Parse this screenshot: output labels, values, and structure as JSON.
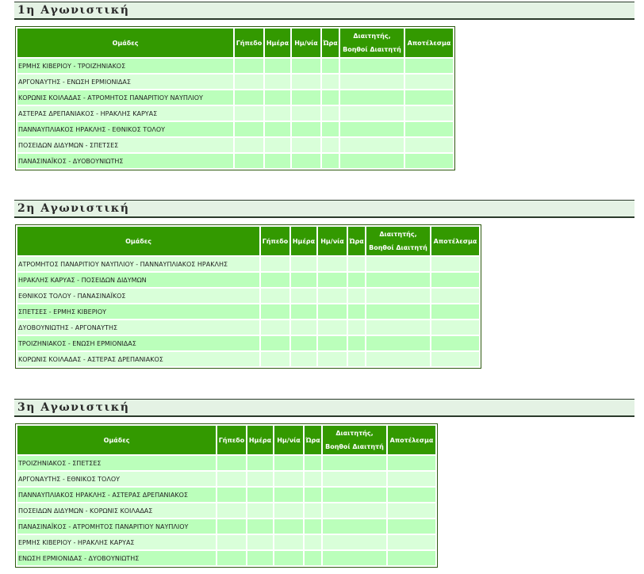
{
  "columns": [
    "Ομάδες",
    "Γήπεδο",
    "Ημέρα",
    "Ημ/νία",
    "Ώρα",
    "Διαιτητής,|Βοηθοί Διαιτητή",
    "Αποτέλεσμα"
  ],
  "colors": {
    "header_bg": "#339900",
    "row_dark": "#bbffbb",
    "row_light": "#d9ffd9",
    "section_bg": "#e4f2e4"
  },
  "rounds": [
    {
      "title": "1η Αγωνιστική",
      "matches": [
        {
          "teams": "ΕΡΜΗΣ ΚΙΒΕΡΙΟΥ - ΤΡΟΙΖΗΝΙΑΚΟΣ",
          "venue": "",
          "day": "",
          "date": "",
          "time": "",
          "referees": "",
          "result": ""
        },
        {
          "teams": "ΑΡΓΟΝΑΥΤΗΣ - ΕΝΩΣΗ ΕΡΜΙΟΝΙΔΑΣ",
          "venue": "",
          "day": "",
          "date": "",
          "time": "",
          "referees": "",
          "result": ""
        },
        {
          "teams": "ΚΟΡΩΝΙΣ ΚΟΙΛΑΔΑΣ - ΑΤΡΟΜΗΤΟΣ ΠΑΝΑΡΙΤΙΟΥ ΝΑΥΠΛΙΟΥ",
          "venue": "",
          "day": "",
          "date": "",
          "time": "",
          "referees": "",
          "result": ""
        },
        {
          "teams": "ΑΣΤΕΡΑΣ ΔΡΕΠΑΝΙΑΚΟΣ - ΗΡΑΚΛΗΣ ΚΑΡΥΑΣ",
          "venue": "",
          "day": "",
          "date": "",
          "time": "",
          "referees": "",
          "result": ""
        },
        {
          "teams": "ΠΑΝΝΑΥΠΛΙΑΚΟΣ ΗΡΑΚΛΗΣ - ΕΘΝΙΚΟΣ ΤΟΛΟΥ",
          "venue": "",
          "day": "",
          "date": "",
          "time": "",
          "referees": "",
          "result": ""
        },
        {
          "teams": "ΠΟΣΕΙΔΩΝ ΔΙΔΥΜΩΝ - ΣΠΕΤΣΕΣ",
          "venue": "",
          "day": "",
          "date": "",
          "time": "",
          "referees": "",
          "result": ""
        },
        {
          "teams": "ΠΑΝΑΣΙΝΑΪΚΟΣ - ΔΥΟΒΟΥΝΙΩΤΗΣ",
          "venue": "",
          "day": "",
          "date": "",
          "time": "",
          "referees": "",
          "result": ""
        }
      ]
    },
    {
      "title": "2η Αγωνιστική",
      "matches": [
        {
          "teams": "ΑΤΡΟΜΗΤΟΣ ΠΑΝΑΡΙΤΙΟΥ ΝΑΥΠΛΙΟΥ - ΠΑΝΝΑΥΠΛΙΑΚΟΣ ΗΡΑΚΛΗΣ",
          "venue": "",
          "day": "",
          "date": "",
          "time": "",
          "referees": "",
          "result": ""
        },
        {
          "teams": "ΗΡΑΚΛΗΣ ΚΑΡΥΑΣ - ΠΟΣΕΙΔΩΝ ΔΙΔΥΜΩΝ",
          "venue": "",
          "day": "",
          "date": "",
          "time": "",
          "referees": "",
          "result": ""
        },
        {
          "teams": "ΕΘΝΙΚΟΣ ΤΟΛΟΥ - ΠΑΝΑΣΙΝΑΪΚΟΣ",
          "venue": "",
          "day": "",
          "date": "",
          "time": "",
          "referees": "",
          "result": ""
        },
        {
          "teams": "ΣΠΕΤΣΕΣ - ΕΡΜΗΣ ΚΙΒΕΡΙΟΥ",
          "venue": "",
          "day": "",
          "date": "",
          "time": "",
          "referees": "",
          "result": ""
        },
        {
          "teams": "ΔΥΟΒΟΥΝΙΩΤΗΣ - ΑΡΓΟΝΑΥΤΗΣ",
          "venue": "",
          "day": "",
          "date": "",
          "time": "",
          "referees": "",
          "result": ""
        },
        {
          "teams": "ΤΡΟΙΖΗΝΙΑΚΟΣ - ΕΝΩΣΗ ΕΡΜΙΟΝΙΔΑΣ",
          "venue": "",
          "day": "",
          "date": "",
          "time": "",
          "referees": "",
          "result": ""
        },
        {
          "teams": "ΚΟΡΩΝΙΣ ΚΟΙΛΑΔΑΣ - ΑΣΤΕΡΑΣ ΔΡΕΠΑΝΙΑΚΟΣ",
          "venue": "",
          "day": "",
          "date": "",
          "time": "",
          "referees": "",
          "result": ""
        }
      ]
    },
    {
      "title": "3η Αγωνιστική",
      "matches": [
        {
          "teams": "ΤΡΟΙΖΗΝΙΑΚΟΣ - ΣΠΕΤΣΕΣ",
          "venue": "",
          "day": "",
          "date": "",
          "time": "",
          "referees": "",
          "result": ""
        },
        {
          "teams": "ΑΡΓΟΝΑΥΤΗΣ - ΕΘΝΙΚΟΣ ΤΟΛΟΥ",
          "venue": "",
          "day": "",
          "date": "",
          "time": "",
          "referees": "",
          "result": ""
        },
        {
          "teams": "ΠΑΝΝΑΥΠΛΙΑΚΟΣ ΗΡΑΚΛΗΣ - ΑΣΤΕΡΑΣ ΔΡΕΠΑΝΙΑΚΟΣ",
          "venue": "",
          "day": "",
          "date": "",
          "time": "",
          "referees": "",
          "result": ""
        },
        {
          "teams": "ΠΟΣΕΙΔΩΝ ΔΙΔΥΜΩΝ - ΚΟΡΩΝΙΣ ΚΟΙΛΑΔΑΣ",
          "venue": "",
          "day": "",
          "date": "",
          "time": "",
          "referees": "",
          "result": ""
        },
        {
          "teams": "ΠΑΝΑΣΙΝΑΪΚΟΣ - ΑΤΡΟΜΗΤΟΣ ΠΑΝΑΡΙΤΙΟΥ ΝΑΥΠΛΙΟΥ",
          "venue": "",
          "day": "",
          "date": "",
          "time": "",
          "referees": "",
          "result": ""
        },
        {
          "teams": "ΕΡΜΗΣ ΚΙΒΕΡΙΟΥ - ΗΡΑΚΛΗΣ ΚΑΡΥΑΣ",
          "venue": "",
          "day": "",
          "date": "",
          "time": "",
          "referees": "",
          "result": ""
        },
        {
          "teams": "ΕΝΩΣΗ ΕΡΜΙΟΝΙΔΑΣ - ΔΥΟΒΟΥΝΙΩΤΗΣ",
          "venue": "",
          "day": "",
          "date": "",
          "time": "",
          "referees": "",
          "result": ""
        }
      ]
    }
  ]
}
